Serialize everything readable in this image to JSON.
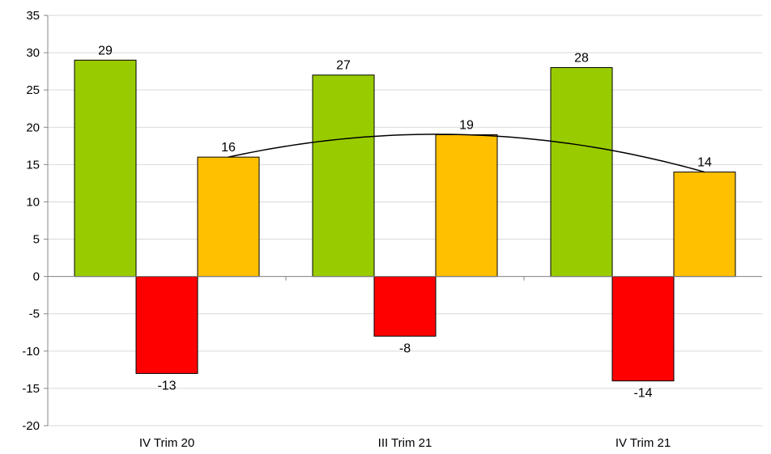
{
  "chart_data": {
    "type": "bar",
    "title": "",
    "xlabel": "",
    "ylabel": "",
    "categories": [
      "IV Trim 20",
      "III Trim 21",
      "IV Trim 21"
    ],
    "series": [
      {
        "color": "#99CC00",
        "values": [
          29,
          27,
          28
        ]
      },
      {
        "color": "#FF0000",
        "values": [
          -13,
          -8,
          -14
        ]
      },
      {
        "color": "#FFC000",
        "values": [
          16,
          19,
          14
        ]
      }
    ],
    "data_labels": [
      [
        "29",
        "27",
        "28"
      ],
      [
        "-13",
        "-8",
        "-14"
      ],
      [
        "16",
        "19",
        "14"
      ]
    ],
    "ylim": [
      -20,
      35
    ],
    "yticks": [
      35,
      30,
      25,
      20,
      15,
      10,
      5,
      0,
      -5,
      -10,
      -15,
      -20
    ],
    "grid": true,
    "legend": "none",
    "trendline": {
      "type": "polynomial",
      "color": "#000000",
      "basis_series": 2
    }
  }
}
